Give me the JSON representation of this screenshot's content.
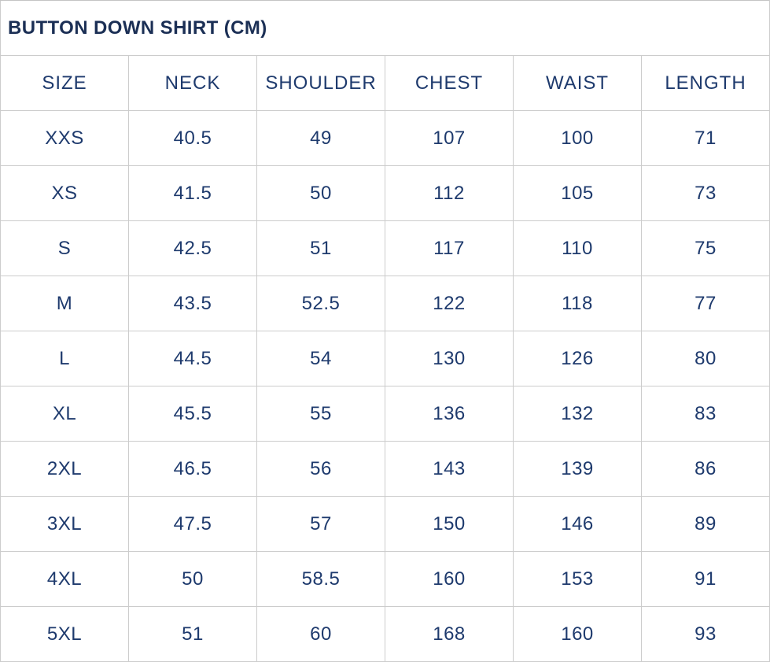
{
  "size_chart": {
    "title": "BUTTON DOWN SHIRT (CM)",
    "unit": "CM",
    "columns": [
      "SIZE",
      "NECK",
      "SHOULDER",
      "CHEST",
      "WAIST",
      "LENGTH"
    ],
    "rows": [
      [
        "XXS",
        "40.5",
        "49",
        "107",
        "100",
        "71"
      ],
      [
        "XS",
        "41.5",
        "50",
        "112",
        "105",
        "73"
      ],
      [
        "S",
        "42.5",
        "51",
        "117",
        "110",
        "75"
      ],
      [
        "M",
        "43.5",
        "52.5",
        "122",
        "118",
        "77"
      ],
      [
        "L",
        "44.5",
        "54",
        "130",
        "126",
        "80"
      ],
      [
        "XL",
        "45.5",
        "55",
        "136",
        "132",
        "83"
      ],
      [
        "2XL",
        "46.5",
        "56",
        "143",
        "139",
        "86"
      ],
      [
        "3XL",
        "47.5",
        "57",
        "150",
        "146",
        "89"
      ],
      [
        "4XL",
        "50",
        "58.5",
        "160",
        "153",
        "91"
      ],
      [
        "5XL",
        "51",
        "60",
        "168",
        "160",
        "93"
      ]
    ],
    "colors": {
      "title_text": "#1b2f55",
      "cell_text": "#1e3a6d",
      "border": "#cccccc",
      "background": "#ffffff"
    }
  }
}
